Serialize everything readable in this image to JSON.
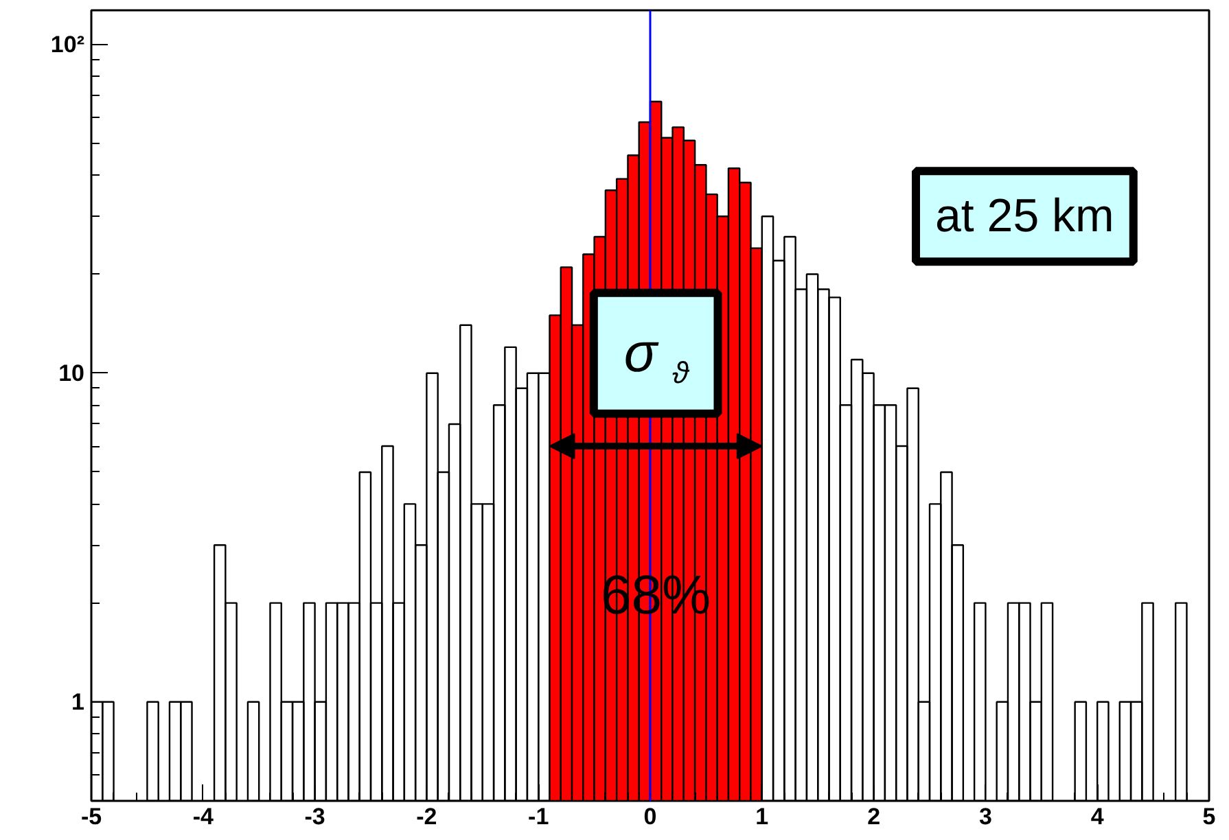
{
  "chart_data": {
    "type": "histogram",
    "bins": [
      -5,
      -4.9,
      -4.8,
      -4.7,
      -4.6,
      -4.5,
      -4.4,
      -4.3,
      -4.2,
      -4.1,
      -4,
      -3.9,
      -3.8,
      -3.7,
      -3.6,
      -3.5,
      -3.4,
      -3.3,
      -3.2,
      -3.1,
      -3,
      -2.9,
      -2.8,
      -2.7,
      -2.6,
      -2.5,
      -2.4,
      -2.3,
      -2.2,
      -2.1,
      -2,
      -1.9,
      -1.8,
      -1.7,
      -1.6,
      -1.5,
      -1.4,
      -1.3,
      -1.2,
      -1.1,
      -1,
      -0.9,
      -0.8,
      -0.7,
      -0.6,
      -0.5,
      -0.4,
      -0.3,
      -0.2,
      -0.1,
      0,
      0.1,
      0.2,
      0.3,
      0.4,
      0.5,
      0.6,
      0.7,
      0.8,
      0.9,
      1,
      1.1,
      1.2,
      1.3,
      1.4,
      1.5,
      1.6,
      1.7,
      1.8,
      1.9,
      2,
      2.1,
      2.2,
      2.3,
      2.4,
      2.5,
      2.6,
      2.7,
      2.8,
      2.9,
      3,
      3.1,
      3.2,
      3.3,
      3.4,
      3.5,
      3.6,
      3.7,
      3.8,
      3.9,
      4,
      4.1,
      4.2,
      4.3,
      4.4,
      4.5,
      4.6,
      4.7,
      4.8,
      4.9,
      5
    ],
    "values": [
      1,
      1,
      null,
      null,
      null,
      1,
      null,
      1,
      1,
      null,
      null,
      3,
      2,
      null,
      1,
      null,
      2,
      1,
      1,
      2,
      1,
      2,
      2,
      2,
      5,
      2,
      6,
      2,
      4,
      3,
      10,
      5,
      7,
      14,
      4,
      4,
      8,
      12,
      9,
      10,
      10,
      15,
      21,
      14,
      23,
      26,
      36,
      39,
      46,
      58,
      67,
      52,
      56,
      51,
      43,
      35,
      30,
      42,
      38,
      24,
      30,
      22,
      26,
      18,
      20,
      18,
      17,
      8,
      11,
      10,
      8,
      8,
      6,
      9,
      1,
      4,
      5,
      3,
      null,
      2,
      null,
      1,
      2,
      2,
      1,
      2,
      null,
      null,
      1,
      null,
      1,
      null,
      1,
      1,
      2,
      null,
      null,
      2,
      null,
      null
    ],
    "colors": [
      null,
      null,
      null,
      null,
      null,
      null,
      null,
      null,
      null,
      null,
      null,
      null,
      null,
      null,
      null,
      null,
      null,
      null,
      null,
      null,
      null,
      null,
      null,
      null,
      null,
      null,
      null,
      null,
      null,
      null,
      null,
      null,
      null,
      null,
      null,
      null,
      null,
      null,
      null,
      null,
      null,
      "#ff0000",
      "#ff0000",
      "#ff0000",
      "#ff0000",
      "#ff0000",
      "#ff0000",
      "#ff0000",
      "#ff0000",
      "#ff0000",
      "#ff0000",
      "#ff0000",
      "#ff0000",
      "#ff0000",
      "#ff0000",
      "#ff0000",
      "#ff0000",
      "#ff0000",
      "#ff0000",
      "#ff0000",
      null,
      null,
      null,
      null,
      null,
      null,
      null,
      null,
      null,
      null,
      null,
      null,
      null,
      null,
      null,
      null,
      null,
      null,
      null,
      null,
      null,
      null,
      null,
      null,
      null,
      null,
      null,
      null,
      null,
      null,
      null,
      null,
      null,
      null,
      null,
      null,
      null,
      null,
      null,
      null
    ],
    "xlim": [
      -5,
      5
    ],
    "ylim": [
      0.5,
      127
    ],
    "log": "y",
    "xticks": [
      -5,
      -4,
      -3,
      -2,
      -1,
      0,
      1,
      2,
      3,
      4,
      5
    ],
    "yticks": [
      {
        "value": 1,
        "label": "1"
      },
      {
        "value": 10,
        "label": "10"
      },
      {
        "value": 100,
        "label": "10²"
      }
    ],
    "ref_lines": [
      {
        "axis": "x",
        "value": 0,
        "color": "#0000ff"
      }
    ],
    "annotations": [
      "at 25 km",
      "σ$_{ϑ}$",
      "68%"
    ]
  }
}
